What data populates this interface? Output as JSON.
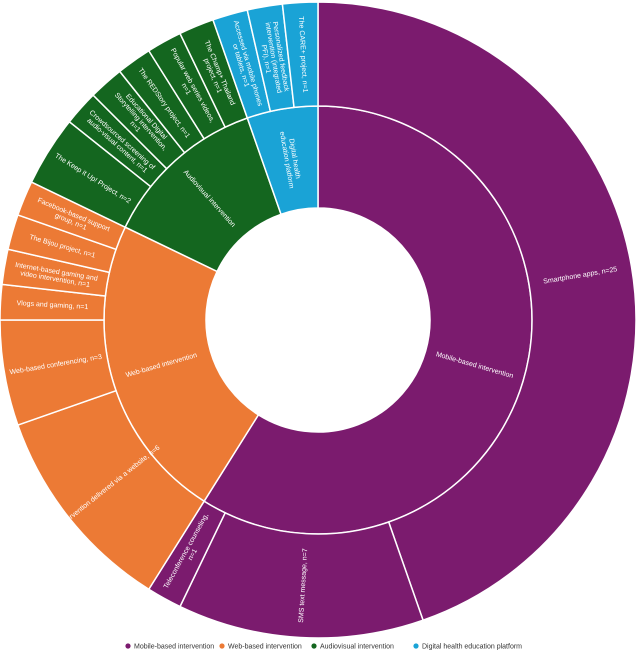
{
  "chart_data": {
    "type": "sunburst",
    "legend_position": "bottom",
    "colors": {
      "Mobile-based intervention": "#7b1b6e",
      "Web-based intervention": "#ec7a35",
      "Audiovisual intervention": "#14661f",
      "Digital health education platform": "#1aa3d6"
    },
    "legend": [
      "Mobile-based intervention",
      "Web-based intervention",
      "Audiovisual intervention",
      "Digital health education platform"
    ],
    "inner": [
      {
        "label": "Mobile-based intervention",
        "value": 33
      },
      {
        "label": "Web-based intervention",
        "value": 13
      },
      {
        "label": "Audiovisual intervention",
        "value": 7
      },
      {
        "label": "Digital health education platform",
        "value": 3
      }
    ],
    "outer": [
      {
        "label": "Smartphone apps, n=25",
        "value": 25,
        "parent": "Mobile-based intervention"
      },
      {
        "label": "SMS text message, n=7",
        "value": 7,
        "parent": "Mobile-based intervention"
      },
      {
        "label": "Teleconference counseling, n=1",
        "value": 1,
        "parent": "Mobile-based intervention"
      },
      {
        "label": "Intervention delivered via a website, n=6",
        "value": 6,
        "parent": "Web-based intervention"
      },
      {
        "label": "Web-based conferencing, n=3",
        "value": 3,
        "parent": "Web-based intervention"
      },
      {
        "label": "Vlogs and gaming, n=1",
        "value": 1,
        "parent": "Web-based intervention"
      },
      {
        "label": "Internet-based gaming and video intervention, n=1",
        "value": 1,
        "parent": "Web-based intervention"
      },
      {
        "label": "The Bijou project, n=1",
        "value": 1,
        "parent": "Web-based intervention"
      },
      {
        "label": "Facebook-based support group, n=1",
        "value": 1,
        "parent": "Web-based intervention"
      },
      {
        "label": "The Keep it Up! Project, n=2",
        "value": 2,
        "parent": "Audiovisual intervention"
      },
      {
        "label": "Crowdsourced screening of audio-visual content, n=1",
        "value": 1,
        "parent": "Audiovisual intervention"
      },
      {
        "label": "Educational Digital Storytelling intervention, n=1",
        "value": 1,
        "parent": "Audiovisual intervention"
      },
      {
        "label": "The REDStory project, n=1",
        "value": 1,
        "parent": "Audiovisual intervention"
      },
      {
        "label": "Popular web series videos, n=1",
        "value": 1,
        "parent": "Audiovisual intervention"
      },
      {
        "label": "The Champ+ Thailand project, n=1",
        "value": 1,
        "parent": "Audiovisual intervention"
      },
      {
        "label": "Accessed via mobile phones or tablets, n=1",
        "value": 1,
        "parent": "Digital health education platform"
      },
      {
        "label": "Personalized feedback intervention (integrated PFI), n=1",
        "value": 1,
        "parent": "Digital health education platform"
      },
      {
        "label": "The CARE+ project, n=1",
        "value": 1,
        "parent": "Digital health education platform"
      }
    ]
  }
}
